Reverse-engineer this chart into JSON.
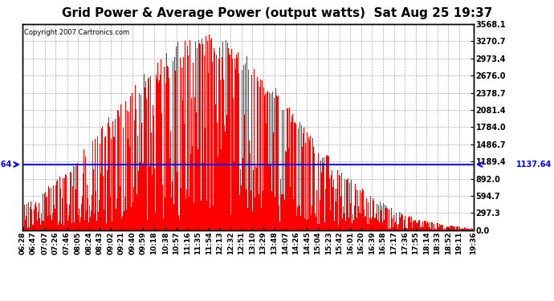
{
  "title": "Grid Power & Average Power (output watts)  Sat Aug 25 19:37",
  "copyright": "Copyright 2007 Cartronics.com",
  "avg_line_value": 1137.64,
  "ymax": 3568.1,
  "yticks": [
    0.0,
    297.3,
    594.7,
    892.0,
    1189.4,
    1486.7,
    1784.0,
    2081.4,
    2378.7,
    2676.0,
    2973.4,
    3270.7,
    3568.1
  ],
  "bar_color": "#FF0000",
  "avg_line_color": "#0000FF",
  "bg_color": "#FFFFFF",
  "plot_bg_color": "#FFFFFF",
  "grid_color": "#888888",
  "title_fontsize": 11,
  "tick_times": [
    "06:28",
    "06:47",
    "07:07",
    "07:26",
    "07:46",
    "08:05",
    "08:24",
    "08:43",
    "09:02",
    "09:21",
    "09:40",
    "09:59",
    "10:18",
    "10:38",
    "10:57",
    "11:16",
    "11:35",
    "11:54",
    "12:13",
    "12:32",
    "12:51",
    "13:10",
    "13:29",
    "13:48",
    "14:07",
    "14:26",
    "14:45",
    "15:04",
    "15:23",
    "15:42",
    "16:01",
    "16:20",
    "16:39",
    "16:58",
    "17:17",
    "17:36",
    "17:55",
    "18:14",
    "18:33",
    "18:52",
    "19:11",
    "19:36"
  ]
}
